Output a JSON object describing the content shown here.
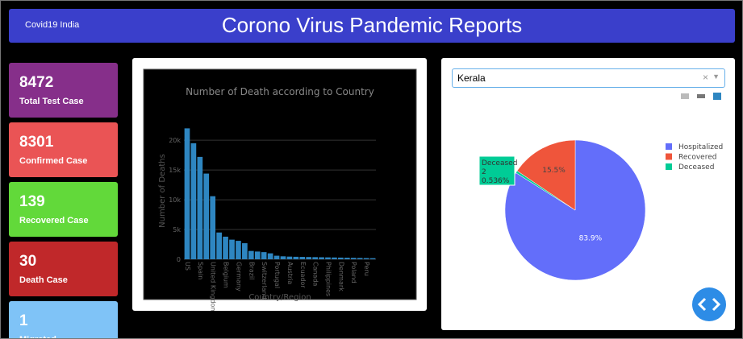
{
  "header": {
    "brand": "Covid19 India",
    "title": "Corono Virus Pandemic Reports"
  },
  "cards": [
    {
      "value": "8472",
      "label": "Total Test Case",
      "color": "#862f8a"
    },
    {
      "value": "8301",
      "label": "Confirmed Case",
      "color": "#ea5455"
    },
    {
      "value": "139",
      "label": "Recovered Case",
      "color": "#62d93a"
    },
    {
      "value": "30",
      "label": "Death Case",
      "color": "#c0282a"
    },
    {
      "value": "1",
      "label": "Migrated",
      "color": "#7fc3f7"
    }
  ],
  "bar_chart": {
    "type": "bar",
    "title": "Number of Death according to Country",
    "x_label": "Country/Region",
    "y_label": "Number of Deaths",
    "color": "#2e86c1",
    "categories": [
      "US",
      null,
      "Spain",
      null,
      "United Kingdom",
      null,
      "Belgium",
      null,
      "Germany",
      null,
      "Brazil",
      null,
      "Switzerland",
      null,
      "Portugal",
      null,
      "Austria",
      null,
      "Ecuador",
      null,
      "Canada",
      null,
      "Philippines",
      null,
      "Denmark",
      null,
      "Poland",
      null,
      "Peru",
      null
    ],
    "values": [
      22000,
      19500,
      17200,
      14400,
      10600,
      4500,
      3800,
      3300,
      3100,
      2700,
      1400,
      1300,
      1200,
      1000,
      600,
      500,
      450,
      420,
      400,
      380,
      360,
      340,
      320,
      300,
      280,
      260,
      240,
      220,
      200,
      180
    ],
    "ylim": [
      0,
      23000
    ],
    "yticks": [
      0,
      {
        "value": 5000,
        "label": "5k"
      },
      {
        "value": 10000,
        "label": "10k"
      },
      {
        "value": 15000,
        "label": "15k"
      },
      {
        "value": 20000,
        "label": "20k"
      }
    ]
  },
  "dropdown": {
    "selected": "Kerala",
    "clear": "×"
  },
  "pie_chart": {
    "type": "pie",
    "categories": [
      "Hospitalized",
      "Deceased",
      "Recovered"
    ],
    "values": [
      83.9,
      0.536,
      15.5
    ],
    "value_labels": [
      "83.9%",
      null,
      "15.5%"
    ],
    "colors": [
      "#636efa",
      "#00cc96",
      "#ef553b"
    ],
    "legend_order": [
      0,
      2,
      1
    ],
    "hover": {
      "name": "Deceased",
      "count": 2,
      "percent": "0.536%"
    }
  }
}
